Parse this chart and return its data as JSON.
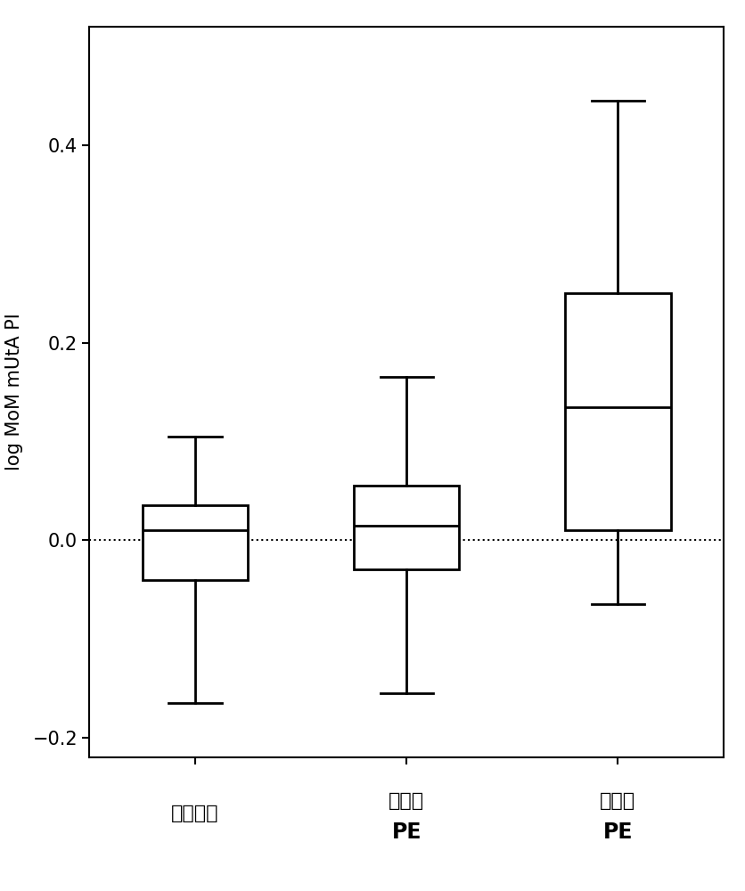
{
  "tick_labels_line1": [
    "不受影响",
    "晚发型",
    "早发型"
  ],
  "tick_labels_line2": [
    "",
    "PE",
    "PE"
  ],
  "ylabel": "log MoM mUtA PI",
  "ylim": [
    -0.22,
    0.52
  ],
  "yticks": [
    -0.2,
    0.0,
    0.2,
    0.4
  ],
  "dotted_line_y": 0.0,
  "box_stats": [
    {
      "whislo": -0.165,
      "q1": -0.04,
      "med": 0.01,
      "q3": 0.035,
      "whishi": 0.105
    },
    {
      "whislo": -0.155,
      "q1": -0.03,
      "med": 0.015,
      "q3": 0.055,
      "whishi": 0.165
    },
    {
      "whislo": -0.065,
      "q1": 0.01,
      "med": 0.135,
      "q3": 0.25,
      "whishi": 0.445
    }
  ],
  "box_width": 0.5,
  "linewidth": 2.0,
  "background_color": "#ffffff",
  "box_facecolor": "#ffffff",
  "box_edgecolor": "#000000",
  "median_color": "#000000",
  "whisker_color": "#000000",
  "cap_color": "#000000",
  "dotted_line_color": "#000000",
  "ylabel_fontsize": 15,
  "tick_fontsize": 15,
  "tick_label_fontsize_chinese": 16,
  "tick_label_fontsize_pe": 17
}
